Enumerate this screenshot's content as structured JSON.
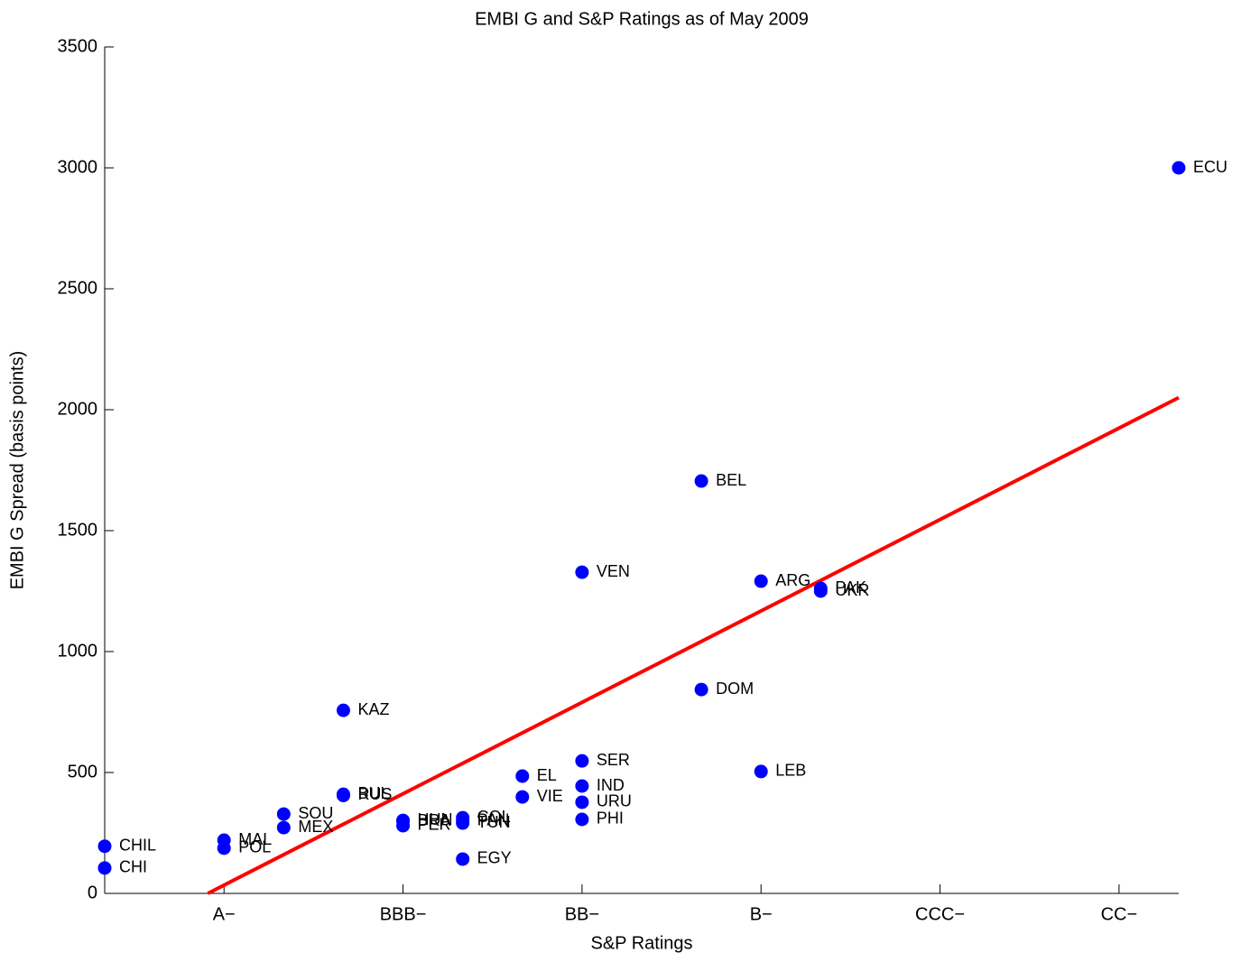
{
  "chart_data": {
    "type": "scatter",
    "title": "EMBI G and S&P Ratings as of May 2009",
    "x_label": "S&P Ratings",
    "y_label": "EMBI G Spread (basis points)",
    "xlim": [
      -1,
      17
    ],
    "ylim": [
      0,
      3500
    ],
    "xticks": [
      {
        "value": 1,
        "label": "A−"
      },
      {
        "value": 4,
        "label": "BBB−"
      },
      {
        "value": 7,
        "label": "BB−"
      },
      {
        "value": 10,
        "label": "B−"
      },
      {
        "value": 13,
        "label": "CCC−"
      },
      {
        "value": 16,
        "label": "CC−"
      }
    ],
    "yticks": [
      0,
      500,
      1000,
      1500,
      2000,
      2500,
      3000,
      3500
    ],
    "series": [
      {
        "color": "#0000ff",
        "labels": [
          "CHIL",
          "CHI",
          "MAL",
          "POL",
          "SOU",
          "MEX",
          "KAZ",
          "BUL",
          "RUS",
          "HUN",
          "BRA",
          "PER",
          "COL",
          "PAN",
          "TUN",
          "EGY",
          "EL",
          "VIE",
          "VEN",
          "SER",
          "IND",
          "URU",
          "PHI",
          "BEL",
          "DOM",
          "ARG",
          "LEB",
          "PAK",
          "UKR",
          "ECU"
        ],
        "x": [
          -1,
          -1,
          1,
          1,
          2,
          2,
          3,
          3,
          3,
          4,
          4,
          4,
          5,
          5,
          5,
          5,
          6,
          6,
          7,
          7,
          7,
          7,
          7,
          9,
          9,
          10,
          10,
          11,
          11,
          17
        ],
        "values": [
          195,
          105,
          220,
          187,
          328,
          272,
          757,
          410,
          405,
          302,
          298,
          280,
          313,
          300,
          291,
          142,
          485,
          399,
          1328,
          548,
          444,
          377,
          306,
          1705,
          843,
          1291,
          504,
          1261,
          1250,
          3000
        ]
      }
    ],
    "fit": {
      "color": "#ff0000",
      "x": [
        0.73,
        17
      ],
      "values": [
        0,
        2050
      ]
    }
  }
}
